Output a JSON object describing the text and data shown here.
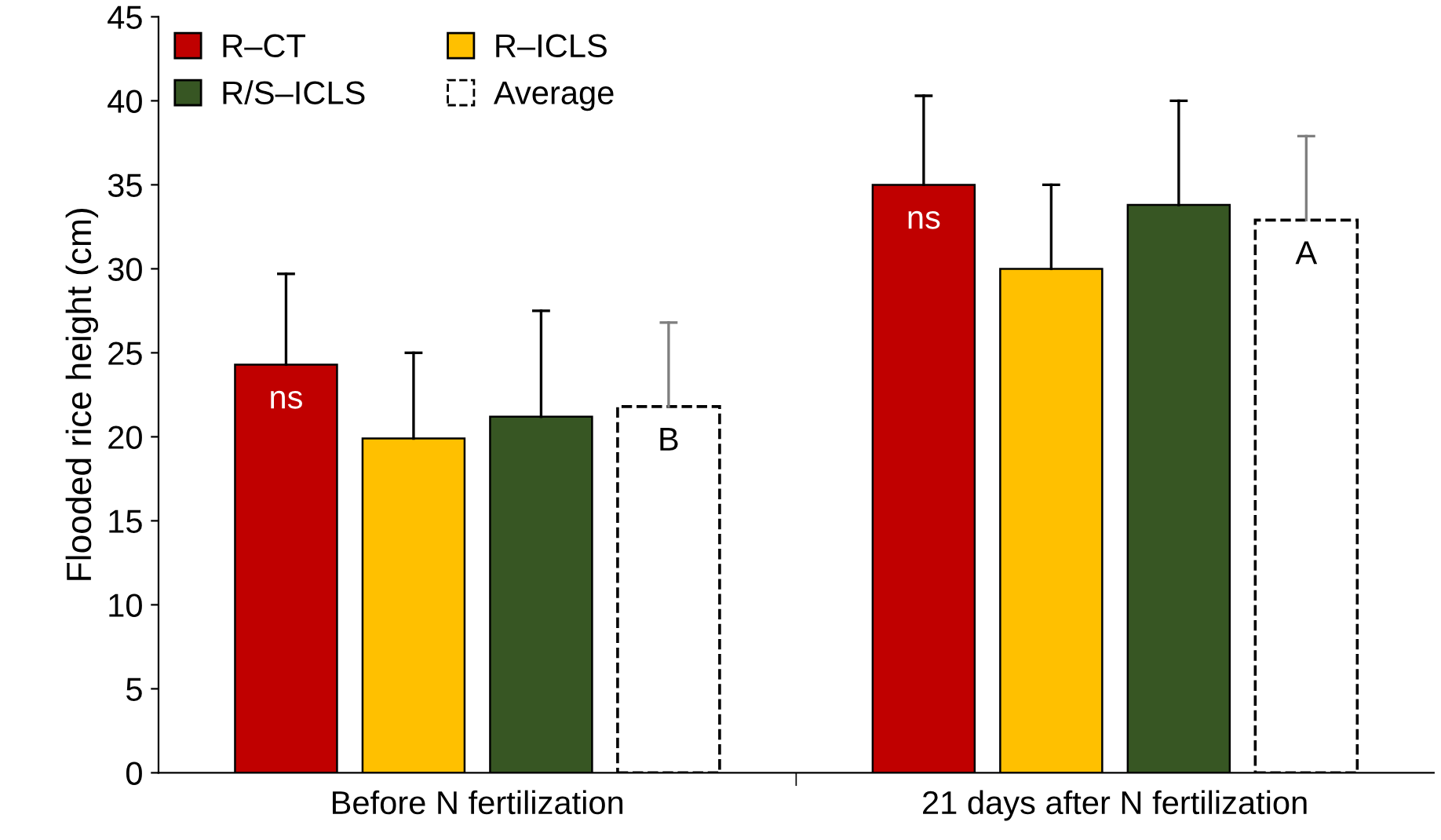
{
  "chart_data": {
    "type": "bar",
    "ylabel": "Flooded rice height (cm)",
    "categories": [
      "Before N fertilization",
      "21 days after N fertilization"
    ],
    "series": [
      {
        "name": "R–CT",
        "color": "#c00000",
        "values": [
          24.3,
          35.0
        ],
        "value_labels": [
          "ns",
          "ns"
        ],
        "errors": [
          [
            24.3,
            29.7
          ],
          [
            35.0,
            40.3
          ]
        ]
      },
      {
        "name": "R–ICLS",
        "color": "#ffc000",
        "values": [
          19.9,
          30.0
        ],
        "errors": [
          [
            19.9,
            25.0
          ],
          [
            30.0,
            35.0
          ]
        ]
      },
      {
        "name": "R/S–ICLS",
        "color": "#375623",
        "values": [
          21.2,
          33.8
        ],
        "errors": [
          [
            21.2,
            27.5
          ],
          [
            33.8,
            40.0
          ]
        ]
      },
      {
        "name": "Average",
        "color": "#ffffff",
        "line_style": "dashed",
        "values": [
          21.8,
          32.9
        ],
        "value_labels": [
          "B",
          "A"
        ],
        "errors": [
          [
            21.8,
            26.8
          ],
          [
            32.9,
            37.9
          ]
        ]
      }
    ],
    "ylim": [
      0,
      45
    ],
    "yticks": [
      0,
      5,
      10,
      15,
      20,
      25,
      30,
      35,
      40,
      45
    ],
    "grid": false,
    "legend": "top left"
  }
}
